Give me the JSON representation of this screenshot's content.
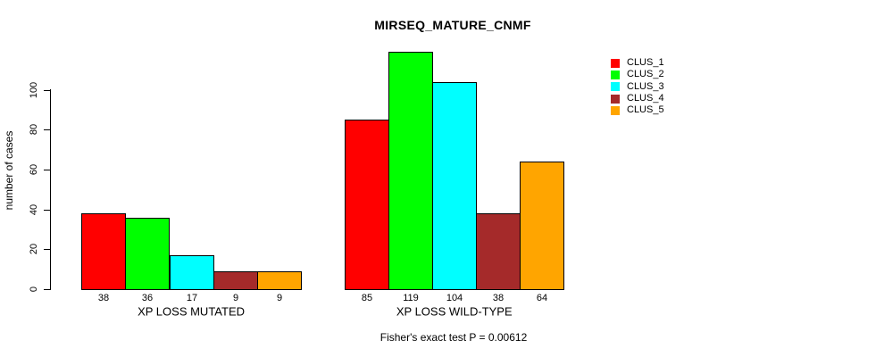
{
  "chart_data": {
    "type": "bar",
    "title": "MIRSEQ_MATURE_CNMF",
    "ylabel": "number of cases",
    "xlabel": "",
    "yticks": [
      0,
      20,
      40,
      60,
      80,
      100
    ],
    "ylim": [
      0,
      120
    ],
    "grid": false,
    "legend_position": "right",
    "categories": [
      "XP LOSS MUTATED",
      "XP LOSS WILD-TYPE"
    ],
    "series": [
      {
        "name": "CLUS_1",
        "color": "#FF0000",
        "values": [
          38,
          85
        ]
      },
      {
        "name": "CLUS_2",
        "color": "#00FF00",
        "values": [
          36,
          119
        ]
      },
      {
        "name": "CLUS_3",
        "color": "#00FFFF",
        "values": [
          17,
          104
        ]
      },
      {
        "name": "CLUS_4",
        "color": "#A52A2A",
        "values": [
          9,
          38
        ]
      },
      {
        "name": "CLUS_5",
        "color": "#FFA500",
        "values": [
          9,
          64
        ]
      }
    ],
    "bar_value_labels": [
      [
        38,
        36,
        17,
        9,
        9
      ],
      [
        85,
        119,
        104,
        38,
        64
      ]
    ],
    "caption": "Fisher's exact test P = 0.00612"
  }
}
